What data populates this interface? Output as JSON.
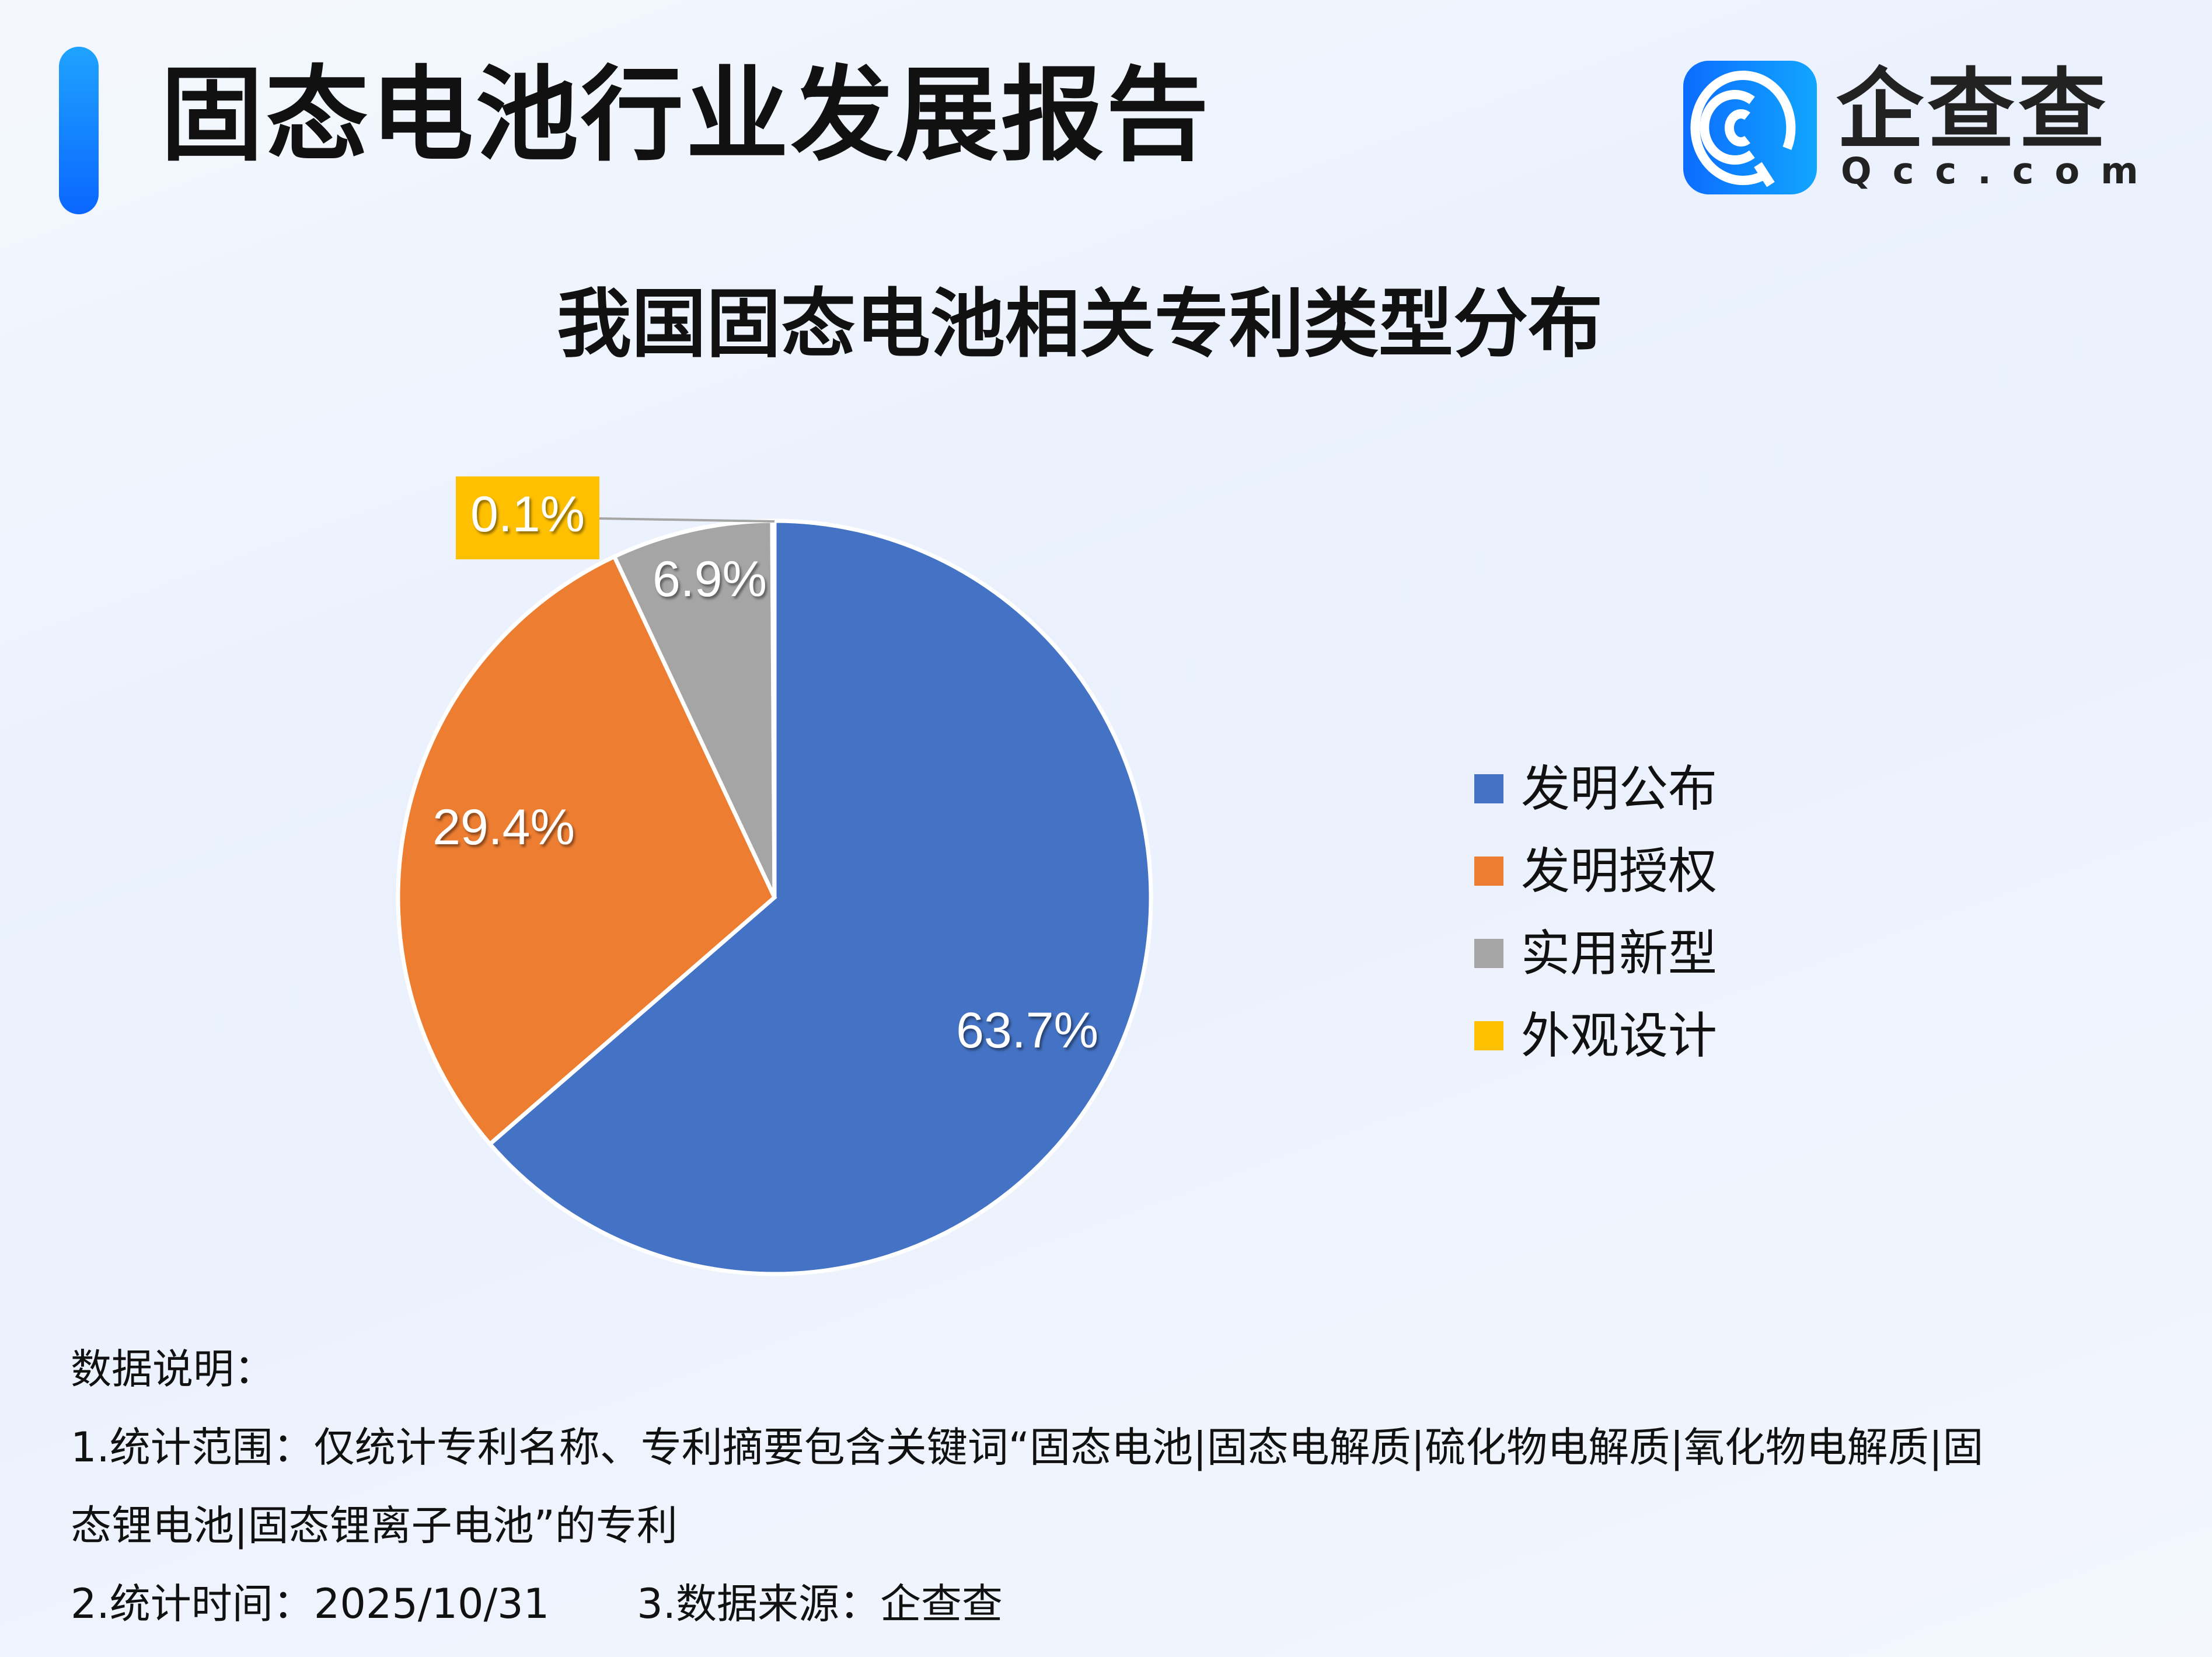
{
  "header": {
    "title": "固态电池行业发展报告",
    "logo_cn": "企查查",
    "logo_en": "Qcc.com"
  },
  "chart_data": {
    "type": "pie",
    "title": "我国固态电池相关专利类型分布",
    "categories": [
      "发明公布",
      "发明授权",
      "实用新型",
      "外观设计"
    ],
    "values": [
      63.7,
      29.4,
      6.9,
      0.1
    ],
    "labels": [
      "63.7%",
      "29.4%",
      "6.9%",
      "0.1%"
    ],
    "colors": [
      "#4472c4",
      "#ed7d31",
      "#a5a5a5",
      "#ffc000"
    ],
    "unit": "%",
    "legend": "right"
  },
  "notes": {
    "heading": "数据说明：",
    "line1": "1.统计范围：仅统计专利名称、专利摘要包含关键词“固态电池|固态电解质|硫化物电解质|氧化物电解质|固",
    "line2": "态锂电池|固态锂离子电池”的专利",
    "time": "2.统计时间：2025/10/31",
    "source": "3.数据来源：企查查"
  }
}
